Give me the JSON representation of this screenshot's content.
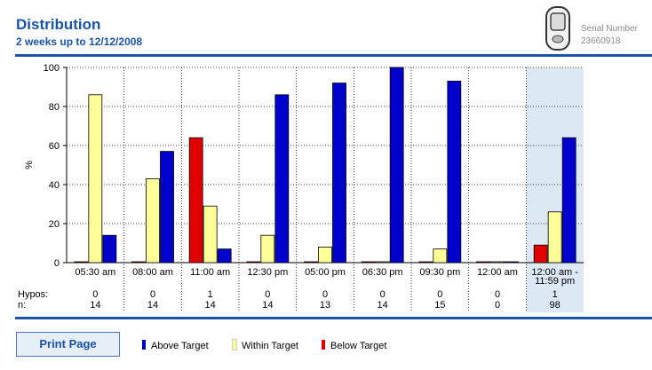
{
  "header": {
    "title": "Distribution",
    "subtitle": "2 weeks up to 12/12/2008",
    "serial_label": "Serial Number",
    "serial_value": "23660918",
    "device_icon": "glucose-meter-icon"
  },
  "footer": {
    "print_label": "Print Page",
    "legend": [
      {
        "label": "Above Target",
        "color": "#0000cc"
      },
      {
        "label": "Within Target",
        "color": "#ffff99"
      },
      {
        "label": "Below Target",
        "color": "#e00000"
      }
    ]
  },
  "chart_data": {
    "type": "bar",
    "ylabel": "%",
    "ylim": [
      0,
      100
    ],
    "yticks": [
      0,
      20,
      40,
      60,
      80,
      100
    ],
    "categories": [
      "05:30 am",
      "08:00 am",
      "11:00 am",
      "12:30 pm",
      "05:00 pm",
      "06:30 pm",
      "09:30 pm",
      "12:00 am",
      "12:00 am - 11:59 pm"
    ],
    "highlight_category": "12:00 am - 11:59 pm",
    "series": [
      {
        "name": "Below Target",
        "color": "#e00000",
        "values": [
          0,
          0,
          64,
          0,
          0,
          0,
          0,
          0,
          9
        ]
      },
      {
        "name": "Within Target",
        "color": "#ffff99",
        "values": [
          86,
          43,
          29,
          14,
          8,
          0,
          7,
          0,
          26
        ]
      },
      {
        "name": "Above Target",
        "color": "#0000cc",
        "values": [
          14,
          57,
          7,
          86,
          92,
          100,
          93,
          0,
          64
        ]
      }
    ],
    "rows": [
      {
        "label": "Hypos:",
        "values": [
          "0",
          "0",
          "1",
          "0",
          "0",
          "0",
          "0",
          "0",
          "1"
        ]
      },
      {
        "label": "n:",
        "values": [
          "14",
          "14",
          "14",
          "14",
          "13",
          "14",
          "15",
          "0",
          "98"
        ]
      }
    ],
    "grid": true
  }
}
